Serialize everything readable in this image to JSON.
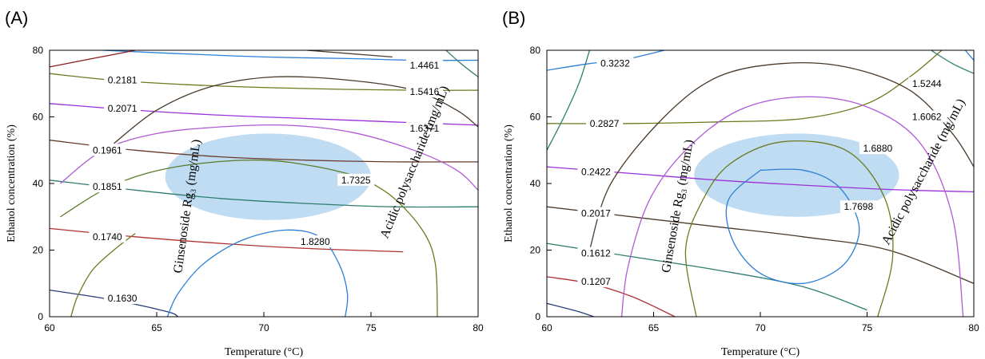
{
  "chart_data": [
    {
      "type": "contour",
      "panel_label": "(A)",
      "xlabel": "Temperature (°C)",
      "ylabel": "Ethanol concentration (%)",
      "xlim": [
        60,
        80
      ],
      "ylim": [
        0,
        80
      ],
      "xticks": [
        "60",
        "65",
        "70",
        "75",
        "80"
      ],
      "yticks": [
        "0",
        "20",
        "40",
        "60",
        "80"
      ],
      "overlay_title_1": "Ginsenoside Rg₃ (mg/mL)",
      "overlay_title_2": "Acidic polysaccharide (mg/mL)",
      "optimum_region": {
        "center": [
          70.2,
          42
        ],
        "radius": [
          4.8,
          13
        ]
      },
      "series": [
        {
          "label": "0.2181",
          "color": "#6b7a1d",
          "label_at": [
            63.4,
            71
          ],
          "points": [
            [
              60,
              73
            ],
            [
              63,
              71
            ],
            [
              67,
              69.5
            ],
            [
              72,
              68.5
            ],
            [
              77,
              68
            ],
            [
              80,
              68
            ]
          ]
        },
        {
          "label": "0.2071",
          "color": "#9b30d9",
          "label_at": [
            63.4,
            62.5
          ],
          "points": [
            [
              60,
              64
            ],
            [
              64,
              62
            ],
            [
              68,
              60.5
            ],
            [
              72,
              59.5
            ],
            [
              76,
              58.5
            ],
            [
              80,
              57.5
            ]
          ]
        },
        {
          "label": "0.1961",
          "color": "#6b3a2a",
          "label_at": [
            62.7,
            50
          ],
          "points": [
            [
              60,
              53
            ],
            [
              64,
              50
            ],
            [
              68,
              48
            ],
            [
              72,
              47
            ],
            [
              76,
              46.5
            ],
            [
              80,
              46.5
            ]
          ]
        },
        {
          "label": "0.1851",
          "color": "#2e7d6e",
          "label_at": [
            62.7,
            39
          ],
          "points": [
            [
              60,
              41
            ],
            [
              64,
              38
            ],
            [
              68,
              35.5
            ],
            [
              72,
              34
            ],
            [
              76,
              33
            ],
            [
              80,
              33
            ]
          ]
        },
        {
          "label": "0.1740",
          "color": "#b03030",
          "label_at": [
            62.7,
            24
          ],
          "points": [
            [
              60,
              26.5
            ],
            [
              64,
              24
            ],
            [
              68,
              22
            ],
            [
              72,
              20.5
            ],
            [
              76.5,
              19.5
            ]
          ]
        },
        {
          "label": "0.1630",
          "color": "#2b3f7a",
          "label_at": [
            63.4,
            5.5
          ],
          "points": [
            [
              60,
              8
            ],
            [
              63,
              5
            ],
            [
              65.5,
              1.5
            ],
            [
              66,
              0
            ]
          ]
        },
        {
          "label": "1.4461",
          "color": "#2b7fd6",
          "label_at": [
            77.5,
            75.5
          ],
          "points": [
            [
              62.5,
              80
            ],
            [
              66,
              79
            ],
            [
              70,
              78
            ],
            [
              74,
              77.5
            ],
            [
              77,
              77
            ],
            [
              80,
              77
            ]
          ]
        },
        {
          "label": "1.5416",
          "color": "#4a3a2a",
          "label_at": [
            77.5,
            67.5
          ],
          "points": [
            [
              63,
              52
            ],
            [
              65,
              62
            ],
            [
              67.5,
              69
            ],
            [
              70.5,
              72
            ],
            [
              74,
              71
            ],
            [
              77,
              68
            ],
            [
              79,
              62
            ],
            [
              80,
              57
            ]
          ]
        },
        {
          "label": "1.6371",
          "color": "#b05ad6",
          "label_at": [
            77.5,
            56.5
          ],
          "points": [
            [
              60.5,
              40
            ],
            [
              62.5,
              50
            ],
            [
              65,
              55
            ],
            [
              68,
              57
            ],
            [
              71,
              57.5
            ],
            [
              74,
              55.5
            ],
            [
              77,
              50
            ],
            [
              79,
              44
            ],
            [
              80,
              38
            ]
          ]
        },
        {
          "label": "1.7325",
          "color": "#5a7a2a",
          "label_at": [
            74.3,
            41
          ],
          "points": [
            [
              60.5,
              30
            ],
            [
              62.5,
              38
            ],
            [
              64.5,
              43
            ],
            [
              67,
              46
            ],
            [
              70,
              47
            ],
            [
              72.5,
              45
            ],
            [
              74.5,
              42
            ]
          ]
        },
        {
          "label": "1.8280",
          "color": "#2b7fd6",
          "label_at": [
            72.4,
            22.5
          ],
          "points": [
            [
              65.5,
              0
            ],
            [
              66,
              7
            ],
            [
              67.2,
              16
            ],
            [
              69,
              23
            ],
            [
              71,
              26
            ],
            [
              72.6,
              24
            ],
            [
              73.5,
              16
            ],
            [
              73.9,
              7
            ],
            [
              73.8,
              0
            ]
          ]
        },
        {
          "label": "",
          "color": "#6b7a1d",
          "label_at": null,
          "points": [
            [
              61,
              0
            ],
            [
              61.3,
              6
            ],
            [
              62,
              14
            ],
            [
              63,
              20
            ],
            [
              64,
              25
            ]
          ]
        },
        {
          "label": "",
          "color": "#6b7a1d",
          "label_at": null,
          "points": [
            [
              74.5,
              42
            ],
            [
              76,
              36
            ],
            [
              77.4,
              26
            ],
            [
              78,
              16
            ],
            [
              78.1,
              0
            ]
          ]
        },
        {
          "label": "",
          "color": "#4a3a2a",
          "label_at": null,
          "points": [
            [
              72,
              80
            ],
            [
              74,
              79
            ],
            [
              76,
              78
            ]
          ]
        },
        {
          "label": "",
          "color": "#8b1a1a",
          "label_at": null,
          "points": [
            [
              60,
              75
            ],
            [
              62,
              77.5
            ],
            [
              64,
              80
            ]
          ]
        },
        {
          "label": "",
          "color": "#2e7d6e",
          "label_at": null,
          "points": [
            [
              78.5,
              80
            ],
            [
              79.2,
              76
            ],
            [
              80,
              72
            ]
          ]
        }
      ]
    },
    {
      "type": "contour",
      "panel_label": "(B)",
      "xlabel": "Temperature (°C)",
      "ylabel": "Ethanol concentration (%)",
      "xlim": [
        60,
        80
      ],
      "ylim": [
        0,
        80
      ],
      "xticks": [
        "60",
        "65",
        "70",
        "75",
        "80"
      ],
      "yticks": [
        "0",
        "20",
        "40",
        "60",
        "80"
      ],
      "overlay_title_1": "Ginsenoside Rg₃ (mg/mL)",
      "overlay_title_2": "Acidic polysaccharide (mg/mL)",
      "optimum_region": {
        "center": [
          71.7,
          42.5
        ],
        "radius": [
          4.8,
          12.5
        ]
      },
      "series": [
        {
          "label": "0.3232",
          "color": "#2b7fd6",
          "label_at": [
            63.2,
            76
          ],
          "points": [
            [
              60,
              74
            ],
            [
              62,
              76
            ],
            [
              63.5,
              77
            ],
            [
              65.5,
              80
            ]
          ]
        },
        {
          "label": "0.2827",
          "color": "#6b7a1d",
          "label_at": [
            62.7,
            58
          ],
          "points": [
            [
              60,
              58
            ],
            [
              64,
              58
            ],
            [
              68,
              58.5
            ],
            [
              72,
              59.5
            ],
            [
              75,
              64
            ],
            [
              77,
              72
            ],
            [
              78.5,
              80
            ]
          ]
        },
        {
          "label": "0.2422",
          "color": "#9b30d9",
          "label_at": [
            62.3,
            43.5
          ],
          "points": [
            [
              60,
              45
            ],
            [
              64,
              43
            ],
            [
              68,
              41
            ],
            [
              72,
              39.5
            ],
            [
              76,
              38.2
            ],
            [
              80,
              37.5
            ]
          ]
        },
        {
          "label": "0.2017",
          "color": "#4a3a2a",
          "label_at": [
            62.3,
            31
          ],
          "points": [
            [
              60,
              33
            ],
            [
              64,
              30
            ],
            [
              68,
              27
            ],
            [
              72,
              24
            ],
            [
              76,
              20
            ],
            [
              80,
              10
            ]
          ]
        },
        {
          "label": "0.1612",
          "color": "#2e7d6e",
          "label_at": [
            62.3,
            19
          ],
          "points": [
            [
              60,
              22
            ],
            [
              64,
              18
            ],
            [
              68,
              14
            ],
            [
              72,
              9
            ],
            [
              75,
              2
            ]
          ]
        },
        {
          "label": "0.1207",
          "color": "#b03030",
          "label_at": [
            62.3,
            10.5
          ],
          "points": [
            [
              60,
              12
            ],
            [
              62,
              10
            ],
            [
              64,
              6
            ],
            [
              66,
              0
            ]
          ]
        },
        {
          "label": "1.5244",
          "color": "#4a3a2a",
          "label_at": [
            77.8,
            70
          ],
          "points": [
            [
              62,
              20
            ],
            [
              63,
              40
            ],
            [
              65.5,
              60
            ],
            [
              68,
              72
            ],
            [
              71,
              76
            ],
            [
              74,
              75
            ],
            [
              77,
              68
            ],
            [
              79,
              55
            ],
            [
              80,
              45
            ]
          ]
        },
        {
          "label": "1.6062",
          "color": "#b05ad6",
          "label_at": [
            77.8,
            60
          ],
          "points": [
            [
              63.5,
              0
            ],
            [
              63.8,
              15
            ],
            [
              64.8,
              35
            ],
            [
              66.5,
              50
            ],
            [
              69,
              62
            ],
            [
              72,
              66
            ],
            [
              75,
              63
            ],
            [
              77.5,
              52
            ],
            [
              79,
              30
            ],
            [
              79.5,
              0
            ]
          ]
        },
        {
          "label": "1.6880",
          "color": "#6b7a1d",
          "label_at": [
            75.5,
            50.5
          ],
          "points": [
            [
              67,
              0
            ],
            [
              66.5,
              20
            ],
            [
              67.3,
              35
            ],
            [
              68.6,
              46
            ],
            [
              71,
              52.5
            ],
            [
              74,
              50
            ],
            [
              75.8,
              36
            ],
            [
              76.2,
              18
            ],
            [
              75.5,
              0
            ]
          ]
        },
        {
          "label": "1.7698",
          "color": "#2b7fd6",
          "label_at": [
            74.6,
            33
          ],
          "points": [
            [
              70,
              44
            ],
            [
              68.5,
              35
            ],
            [
              68.7,
              23
            ],
            [
              70,
              13
            ],
            [
              72,
              10
            ],
            [
              73.8,
              15
            ],
            [
              74.6,
              24
            ],
            [
              74.4,
              32
            ],
            [
              73.5,
              40
            ],
            [
              72,
              44
            ],
            [
              70,
              44
            ]
          ]
        },
        {
          "label": "",
          "color": "#2e7d6e",
          "label_at": null,
          "points": [
            [
              60,
              50
            ],
            [
              60.8,
              60
            ],
            [
              61.5,
              70
            ],
            [
              62,
              80
            ]
          ]
        },
        {
          "label": "",
          "color": "#2e7d6e",
          "label_at": null,
          "points": [
            [
              78,
              80
            ],
            [
              79,
              76
            ],
            [
              80,
              73
            ]
          ]
        },
        {
          "label": "",
          "color": "#2b7fd6",
          "label_at": null,
          "points": [
            [
              79.6,
              80
            ],
            [
              80,
              77
            ]
          ]
        },
        {
          "label": "",
          "color": "#2b3f7a",
          "label_at": null,
          "points": [
            [
              60,
              4
            ],
            [
              61.5,
              1.5
            ],
            [
              62.2,
              0
            ]
          ]
        }
      ]
    }
  ]
}
